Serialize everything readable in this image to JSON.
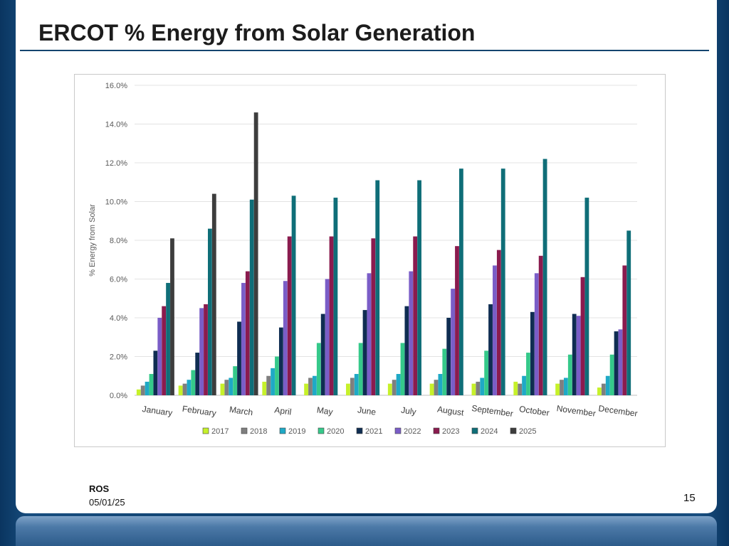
{
  "slide": {
    "title": "ERCOT % Energy from Solar Generation",
    "footer_org": "ROS",
    "footer_date": "05/01/25",
    "page_number": "15"
  },
  "chart_data": {
    "type": "bar",
    "ylabel": "% Energy from Solar",
    "xlabel": "",
    "ylim": [
      0,
      16
    ],
    "yticks": [
      "0.0%",
      "2.0%",
      "4.0%",
      "6.0%",
      "8.0%",
      "10.0%",
      "12.0%",
      "14.0%",
      "16.0%"
    ],
    "grid": true,
    "legend_position": "bottom",
    "categories": [
      "January",
      "February",
      "March",
      "April",
      "May",
      "June",
      "July",
      "August",
      "September",
      "October",
      "November",
      "December"
    ],
    "series": [
      {
        "name": "2017",
        "color": "#c6f12a",
        "values": [
          0.3,
          0.5,
          0.6,
          0.7,
          0.6,
          0.6,
          0.6,
          0.6,
          0.6,
          0.7,
          0.6,
          0.4
        ]
      },
      {
        "name": "2018",
        "color": "#7f7f7f",
        "values": [
          0.5,
          0.6,
          0.8,
          1.0,
          0.9,
          0.9,
          0.8,
          0.8,
          0.7,
          0.6,
          0.8,
          0.6
        ]
      },
      {
        "name": "2019",
        "color": "#1fa9c6",
        "values": [
          0.7,
          0.8,
          0.9,
          1.4,
          1.0,
          1.1,
          1.1,
          1.1,
          0.9,
          1.0,
          0.9,
          1.0
        ]
      },
      {
        "name": "2020",
        "color": "#35c98a",
        "values": [
          1.1,
          1.3,
          1.5,
          2.0,
          2.7,
          2.7,
          2.7,
          2.4,
          2.3,
          2.2,
          2.1,
          2.1
        ]
      },
      {
        "name": "2021",
        "color": "#0f2d52",
        "values": [
          2.3,
          2.2,
          3.8,
          3.5,
          4.2,
          4.4,
          4.6,
          4.0,
          4.7,
          4.3,
          4.2,
          3.3
        ]
      },
      {
        "name": "2022",
        "color": "#7a5dc7",
        "values": [
          4.0,
          4.5,
          5.8,
          5.9,
          6.0,
          6.3,
          6.4,
          5.5,
          6.7,
          6.3,
          4.1,
          3.4
        ]
      },
      {
        "name": "2023",
        "color": "#8a1b4e",
        "values": [
          4.6,
          4.7,
          6.4,
          8.2,
          8.2,
          8.1,
          8.2,
          7.7,
          7.5,
          7.2,
          6.1,
          6.7
        ]
      },
      {
        "name": "2024",
        "color": "#0f6e78",
        "values": [
          5.8,
          8.6,
          10.1,
          10.3,
          10.2,
          11.1,
          11.1,
          11.7,
          11.7,
          12.2,
          10.2,
          8.5
        ]
      },
      {
        "name": "2025",
        "color": "#3d3d3d",
        "values": [
          8.1,
          10.4,
          14.6,
          null,
          null,
          null,
          null,
          null,
          null,
          null,
          null,
          null
        ]
      }
    ]
  }
}
